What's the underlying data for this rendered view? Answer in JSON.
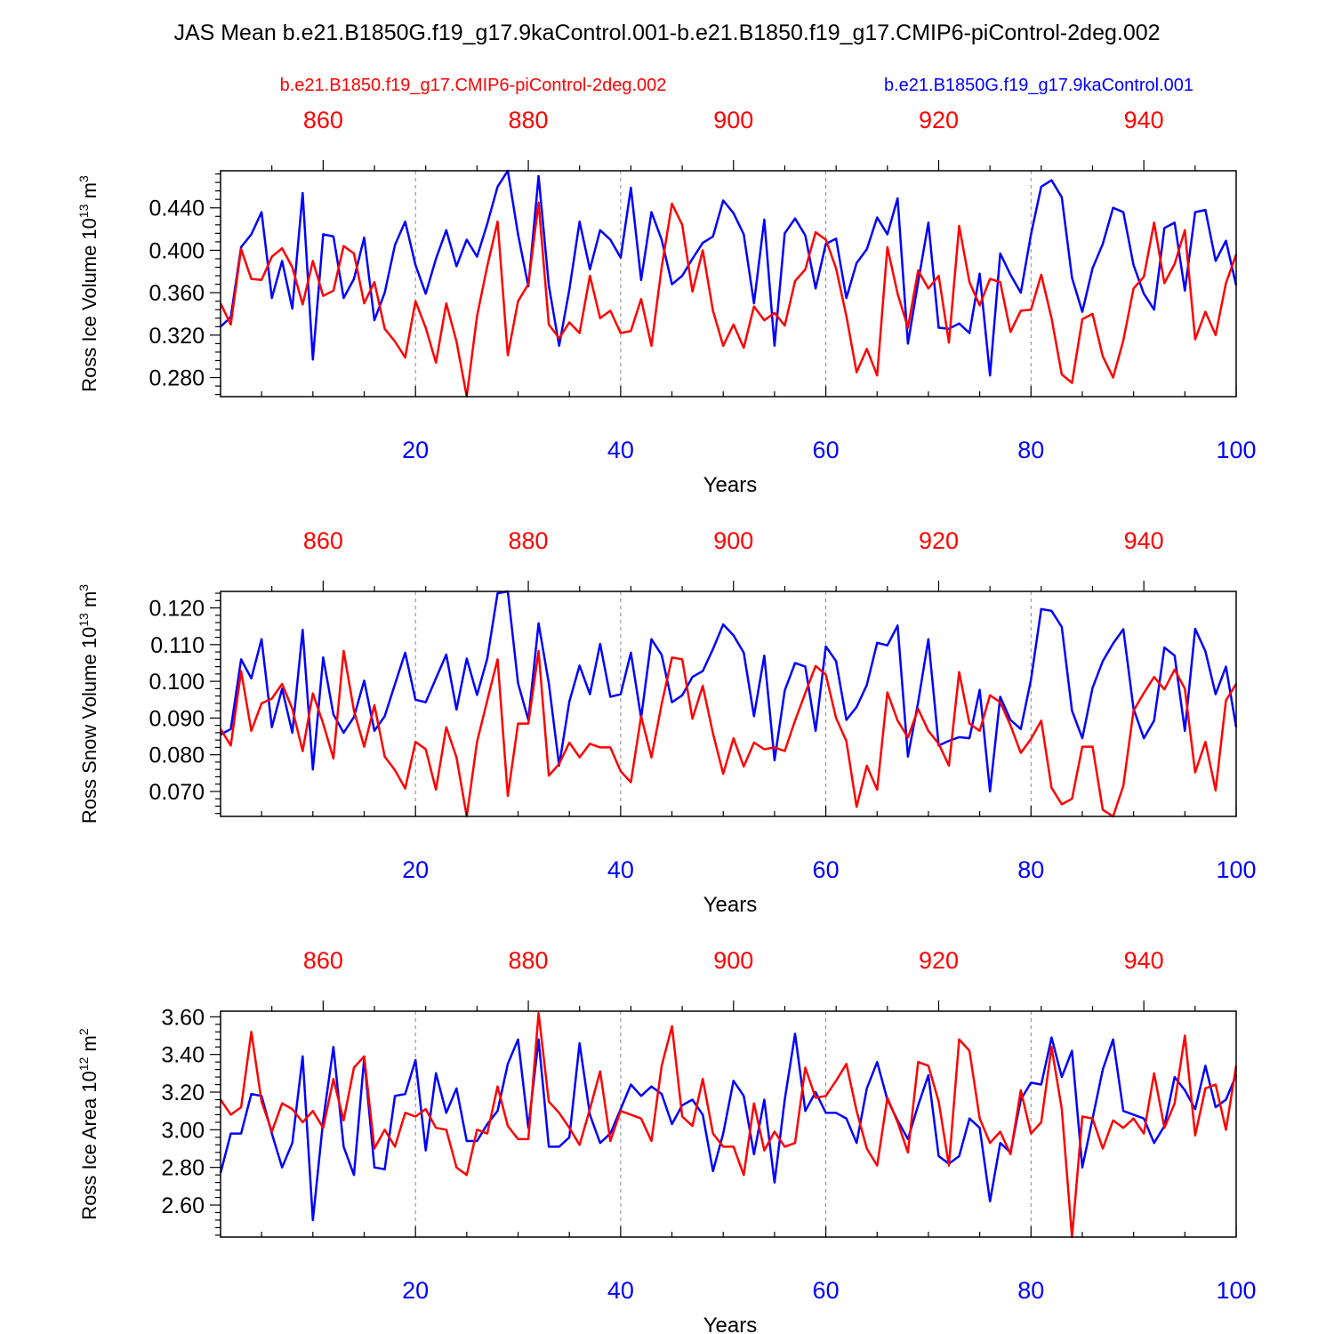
{
  "figure": {
    "title": "JAS Mean b.e21.B1850G.f19_g17.9kaControl.001-b.e21.B1850.f19_g17.CMIP6-piControl-2deg.002",
    "legend_red": "b.e21.B1850.f19_g17.CMIP6-piControl-2deg.002",
    "legend_blue": "b.e21.B1850G.f19_g17.9kaControl.001",
    "colors": {
      "red": "#ff0000",
      "blue": "#0000ff",
      "axis": "#000000",
      "grid": "#888888"
    }
  },
  "chart_data": [
    {
      "type": "line",
      "ylabel": "Ross Ice Volume 10",
      "ylabel_sup": "13",
      "ylabel_unit": " m",
      "ylabel_unit_sup": "3",
      "xlabel": "Years",
      "xlim": [
        1,
        100
      ],
      "x2lim": [
        850,
        949
      ],
      "ylim": [
        0.262,
        0.475
      ],
      "yticks": [
        0.28,
        0.32,
        0.36,
        0.4,
        0.44
      ],
      "ytick_labels": [
        "0.280",
        "0.320",
        "0.360",
        "0.400",
        "0.440"
      ],
      "xticks": [
        20,
        40,
        60,
        80,
        100
      ],
      "xtick_labels": [
        "20",
        "40",
        "60",
        "80",
        "100"
      ],
      "x2ticks": [
        860,
        880,
        900,
        920,
        940
      ],
      "x2tick_labels": [
        "860",
        "880",
        "900",
        "920",
        "940"
      ],
      "gridlines_x": [
        20,
        40,
        60,
        80
      ],
      "series": [
        {
          "name": "b.e21.B1850G.f19_g17.9kaControl.001",
          "color": "blue",
          "values": [
            0.328,
            0.337,
            0.403,
            0.415,
            0.436,
            0.355,
            0.39,
            0.345,
            0.454,
            0.297,
            0.415,
            0.413,
            0.355,
            0.373,
            0.412,
            0.334,
            0.36,
            0.405,
            0.427,
            0.386,
            0.359,
            0.392,
            0.419,
            0.385,
            0.41,
            0.394,
            0.425,
            0.46,
            0.475,
            0.415,
            0.366,
            0.47,
            0.367,
            0.31,
            0.363,
            0.427,
            0.382,
            0.419,
            0.41,
            0.393,
            0.459,
            0.372,
            0.436,
            0.41,
            0.368,
            0.376,
            0.392,
            0.407,
            0.413,
            0.447,
            0.435,
            0.415,
            0.35,
            0.429,
            0.31,
            0.416,
            0.43,
            0.414,
            0.364,
            0.406,
            0.411,
            0.355,
            0.388,
            0.401,
            0.431,
            0.415,
            0.449,
            0.312,
            0.37,
            0.426,
            0.327,
            0.326,
            0.331,
            0.322,
            0.378,
            0.282,
            0.397,
            0.377,
            0.36,
            0.415,
            0.46,
            0.466,
            0.45,
            0.374,
            0.342,
            0.383,
            0.406,
            0.44,
            0.436,
            0.386,
            0.359,
            0.344,
            0.421,
            0.426,
            0.362,
            0.436,
            0.438,
            0.39,
            0.409,
            0.367
          ]
        },
        {
          "name": "b.e21.B1850.f19_g17.CMIP6-piControl-2deg.002",
          "color": "red",
          "values": [
            0.35,
            0.33,
            0.401,
            0.373,
            0.372,
            0.394,
            0.402,
            0.384,
            0.349,
            0.39,
            0.357,
            0.362,
            0.404,
            0.397,
            0.35,
            0.37,
            0.326,
            0.314,
            0.299,
            0.352,
            0.327,
            0.294,
            0.35,
            0.314,
            0.262,
            0.338,
            0.385,
            0.427,
            0.301,
            0.352,
            0.368,
            0.445,
            0.33,
            0.317,
            0.332,
            0.322,
            0.376,
            0.336,
            0.343,
            0.322,
            0.324,
            0.354,
            0.31,
            0.384,
            0.444,
            0.424,
            0.361,
            0.4,
            0.343,
            0.31,
            0.33,
            0.308,
            0.347,
            0.334,
            0.341,
            0.329,
            0.371,
            0.382,
            0.417,
            0.41,
            0.383,
            0.338,
            0.285,
            0.307,
            0.282,
            0.403,
            0.359,
            0.327,
            0.381,
            0.364,
            0.376,
            0.313,
            0.423,
            0.37,
            0.348,
            0.373,
            0.37,
            0.323,
            0.343,
            0.344,
            0.377,
            0.336,
            0.283,
            0.275,
            0.335,
            0.34,
            0.3,
            0.28,
            0.315,
            0.364,
            0.375,
            0.426,
            0.369,
            0.387,
            0.419,
            0.316,
            0.342,
            0.32,
            0.369,
            0.396
          ]
        }
      ]
    },
    {
      "type": "line",
      "ylabel": "Ross Snow Volume 10",
      "ylabel_sup": "13",
      "ylabel_unit": " m",
      "ylabel_unit_sup": "3",
      "xlabel": "Years",
      "xlim": [
        1,
        100
      ],
      "x2lim": [
        850,
        949
      ],
      "ylim": [
        0.0632,
        0.1245
      ],
      "yticks": [
        0.07,
        0.08,
        0.09,
        0.1,
        0.11,
        0.12
      ],
      "ytick_labels": [
        "0.070",
        "0.080",
        "0.090",
        "0.100",
        "0.110",
        "0.120"
      ],
      "xticks": [
        20,
        40,
        60,
        80,
        100
      ],
      "xtick_labels": [
        "20",
        "40",
        "60",
        "80",
        "100"
      ],
      "x2ticks": [
        860,
        880,
        900,
        920,
        940
      ],
      "x2tick_labels": [
        "860",
        "880",
        "900",
        "920",
        "940"
      ],
      "gridlines_x": [
        20,
        40,
        60,
        80
      ],
      "series": [
        {
          "name": "b.e21.B1850G.f19_g17.9kaControl.001",
          "color": "blue",
          "values": [
            0.0855,
            0.087,
            0.106,
            0.1008,
            0.1115,
            0.0875,
            0.098,
            0.086,
            0.114,
            0.076,
            0.1065,
            0.091,
            0.086,
            0.0903,
            0.1002,
            0.0865,
            0.0905,
            0.0992,
            0.1078,
            0.095,
            0.0943,
            0.1008,
            0.1073,
            0.0923,
            0.1062,
            0.0963,
            0.1062,
            0.124,
            0.1245,
            0.0995,
            0.0895,
            0.1158,
            0.0995,
            0.077,
            0.0945,
            0.1043,
            0.0965,
            0.1102,
            0.0958,
            0.0965,
            0.1078,
            0.09,
            0.1115,
            0.1072,
            0.0943,
            0.0962,
            0.1012,
            0.1028,
            0.1088,
            0.1155,
            0.1125,
            0.1078,
            0.0905,
            0.107,
            0.0785,
            0.0975,
            0.105,
            0.104,
            0.0865,
            0.1095,
            0.1055,
            0.0895,
            0.093,
            0.099,
            0.1105,
            0.1098,
            0.1152,
            0.0795,
            0.0943,
            0.1115,
            0.0825,
            0.0838,
            0.0848,
            0.0845,
            0.0977,
            0.07,
            0.0958,
            0.0895,
            0.087,
            0.1005,
            0.1197,
            0.1192,
            0.1148,
            0.092,
            0.0845,
            0.0982,
            0.1055,
            0.1103,
            0.1142,
            0.0925,
            0.0845,
            0.0893,
            0.1092,
            0.107,
            0.0865,
            0.1143,
            0.1082,
            0.0965,
            0.104,
            0.0875
          ]
        },
        {
          "name": "b.e21.B1850.f19_g17.CMIP6-piControl-2deg.002",
          "color": "red",
          "values": [
            0.087,
            0.0825,
            0.1028,
            0.0865,
            0.094,
            0.0953,
            0.0993,
            0.0925,
            0.081,
            0.0967,
            0.0885,
            0.079,
            0.1083,
            0.092,
            0.0822,
            0.0935,
            0.0795,
            0.0758,
            0.0708,
            0.0835,
            0.0815,
            0.0705,
            0.0875,
            0.0793,
            0.0632,
            0.0835,
            0.0948,
            0.106,
            0.0688,
            0.0885,
            0.0885,
            0.1083,
            0.0743,
            0.0775,
            0.0833,
            0.0793,
            0.083,
            0.082,
            0.082,
            0.0755,
            0.0725,
            0.0905,
            0.0793,
            0.0938,
            0.1065,
            0.106,
            0.0898,
            0.0988,
            0.0858,
            0.0748,
            0.0845,
            0.0768,
            0.0833,
            0.0815,
            0.082,
            0.081,
            0.0893,
            0.0968,
            0.1042,
            0.1018,
            0.09,
            0.0837,
            0.0658,
            0.077,
            0.0705,
            0.097,
            0.0893,
            0.0847,
            0.0925,
            0.0865,
            0.083,
            0.077,
            0.1025,
            0.0885,
            0.0865,
            0.0962,
            0.0943,
            0.088,
            0.0805,
            0.0843,
            0.0893,
            0.071,
            0.0665,
            0.068,
            0.0822,
            0.0822,
            0.065,
            0.0632,
            0.0715,
            0.092,
            0.0968,
            0.1012,
            0.0978,
            0.1032,
            0.098,
            0.0752,
            0.0835,
            0.0703,
            0.0948,
            0.0993
          ]
        }
      ]
    },
    {
      "type": "line",
      "ylabel": "Ross Ice Area 10",
      "ylabel_sup": "12",
      "ylabel_unit": " m",
      "ylabel_unit_sup": "2",
      "xlabel": "Years",
      "xlim": [
        1,
        100
      ],
      "x2lim": [
        850,
        949
      ],
      "ylim": [
        2.43,
        3.63
      ],
      "yticks": [
        2.6,
        2.8,
        3.0,
        3.2,
        3.4,
        3.6
      ],
      "ytick_labels": [
        "2.60",
        "2.80",
        "3.00",
        "3.20",
        "3.40",
        "3.60"
      ],
      "xticks": [
        20,
        40,
        60,
        80,
        100
      ],
      "xtick_labels": [
        "20",
        "40",
        "60",
        "80",
        "100"
      ],
      "x2ticks": [
        860,
        880,
        900,
        920,
        940
      ],
      "x2tick_labels": [
        "860",
        "880",
        "900",
        "920",
        "940"
      ],
      "gridlines_x": [
        20,
        40,
        60,
        80
      ],
      "series": [
        {
          "name": "b.e21.B1850G.f19_g17.9kaControl.001",
          "color": "blue",
          "values": [
            2.77,
            2.98,
            2.98,
            3.19,
            3.18,
            2.98,
            2.8,
            2.93,
            3.39,
            2.52,
            3.05,
            3.44,
            2.91,
            2.76,
            3.38,
            2.8,
            2.79,
            3.18,
            3.19,
            3.37,
            2.89,
            3.3,
            3.09,
            3.22,
            2.94,
            2.94,
            3.03,
            3.1,
            3.35,
            3.48,
            3.01,
            3.48,
            2.91,
            2.91,
            2.96,
            3.46,
            3.08,
            2.93,
            2.98,
            3.11,
            3.24,
            3.18,
            3.23,
            3.19,
            3.03,
            3.13,
            3.16,
            3.08,
            2.78,
            2.98,
            3.26,
            3.18,
            2.87,
            3.16,
            2.72,
            3.16,
            3.51,
            3.1,
            3.2,
            3.09,
            3.09,
            3.06,
            2.93,
            3.22,
            3.36,
            3.16,
            3.05,
            2.95,
            3.13,
            3.29,
            2.86,
            2.82,
            2.86,
            3.06,
            3.01,
            2.62,
            2.93,
            2.88,
            3.16,
            3.25,
            3.24,
            3.49,
            3.28,
            3.42,
            2.8,
            3.06,
            3.32,
            3.48,
            3.1,
            3.08,
            3.06,
            2.93,
            3.02,
            3.28,
            3.21,
            3.11,
            3.34,
            3.12,
            3.16,
            3.29
          ]
        },
        {
          "name": "b.e21.B1850.f19_g17.CMIP6-piControl-2deg.002",
          "color": "red",
          "values": [
            3.16,
            3.08,
            3.12,
            3.52,
            3.15,
            2.99,
            3.14,
            3.11,
            3.04,
            3.1,
            3.01,
            3.27,
            3.05,
            3.33,
            3.39,
            2.9,
            3.0,
            2.91,
            3.09,
            3.07,
            3.11,
            3.01,
            3.0,
            2.8,
            2.76,
            3.0,
            2.98,
            3.23,
            3.02,
            2.95,
            2.95,
            3.62,
            3.15,
            3.09,
            3.01,
            2.92,
            3.11,
            3.31,
            2.94,
            3.1,
            3.08,
            3.06,
            2.94,
            3.34,
            3.55,
            3.07,
            3.02,
            3.27,
            2.98,
            2.91,
            2.91,
            2.76,
            3.14,
            2.89,
            2.99,
            2.91,
            2.93,
            3.33,
            3.17,
            3.18,
            3.26,
            3.35,
            3.1,
            2.9,
            2.81,
            3.17,
            3.04,
            2.88,
            3.36,
            3.34,
            3.15,
            2.81,
            3.48,
            3.42,
            3.06,
            2.93,
            2.99,
            2.87,
            3.21,
            2.98,
            3.04,
            3.44,
            3.11,
            2.43,
            3.07,
            3.06,
            2.9,
            3.05,
            3.01,
            3.06,
            2.98,
            3.3,
            3.01,
            3.14,
            3.5,
            2.97,
            3.22,
            3.24,
            3.0,
            3.34
          ]
        }
      ]
    }
  ]
}
